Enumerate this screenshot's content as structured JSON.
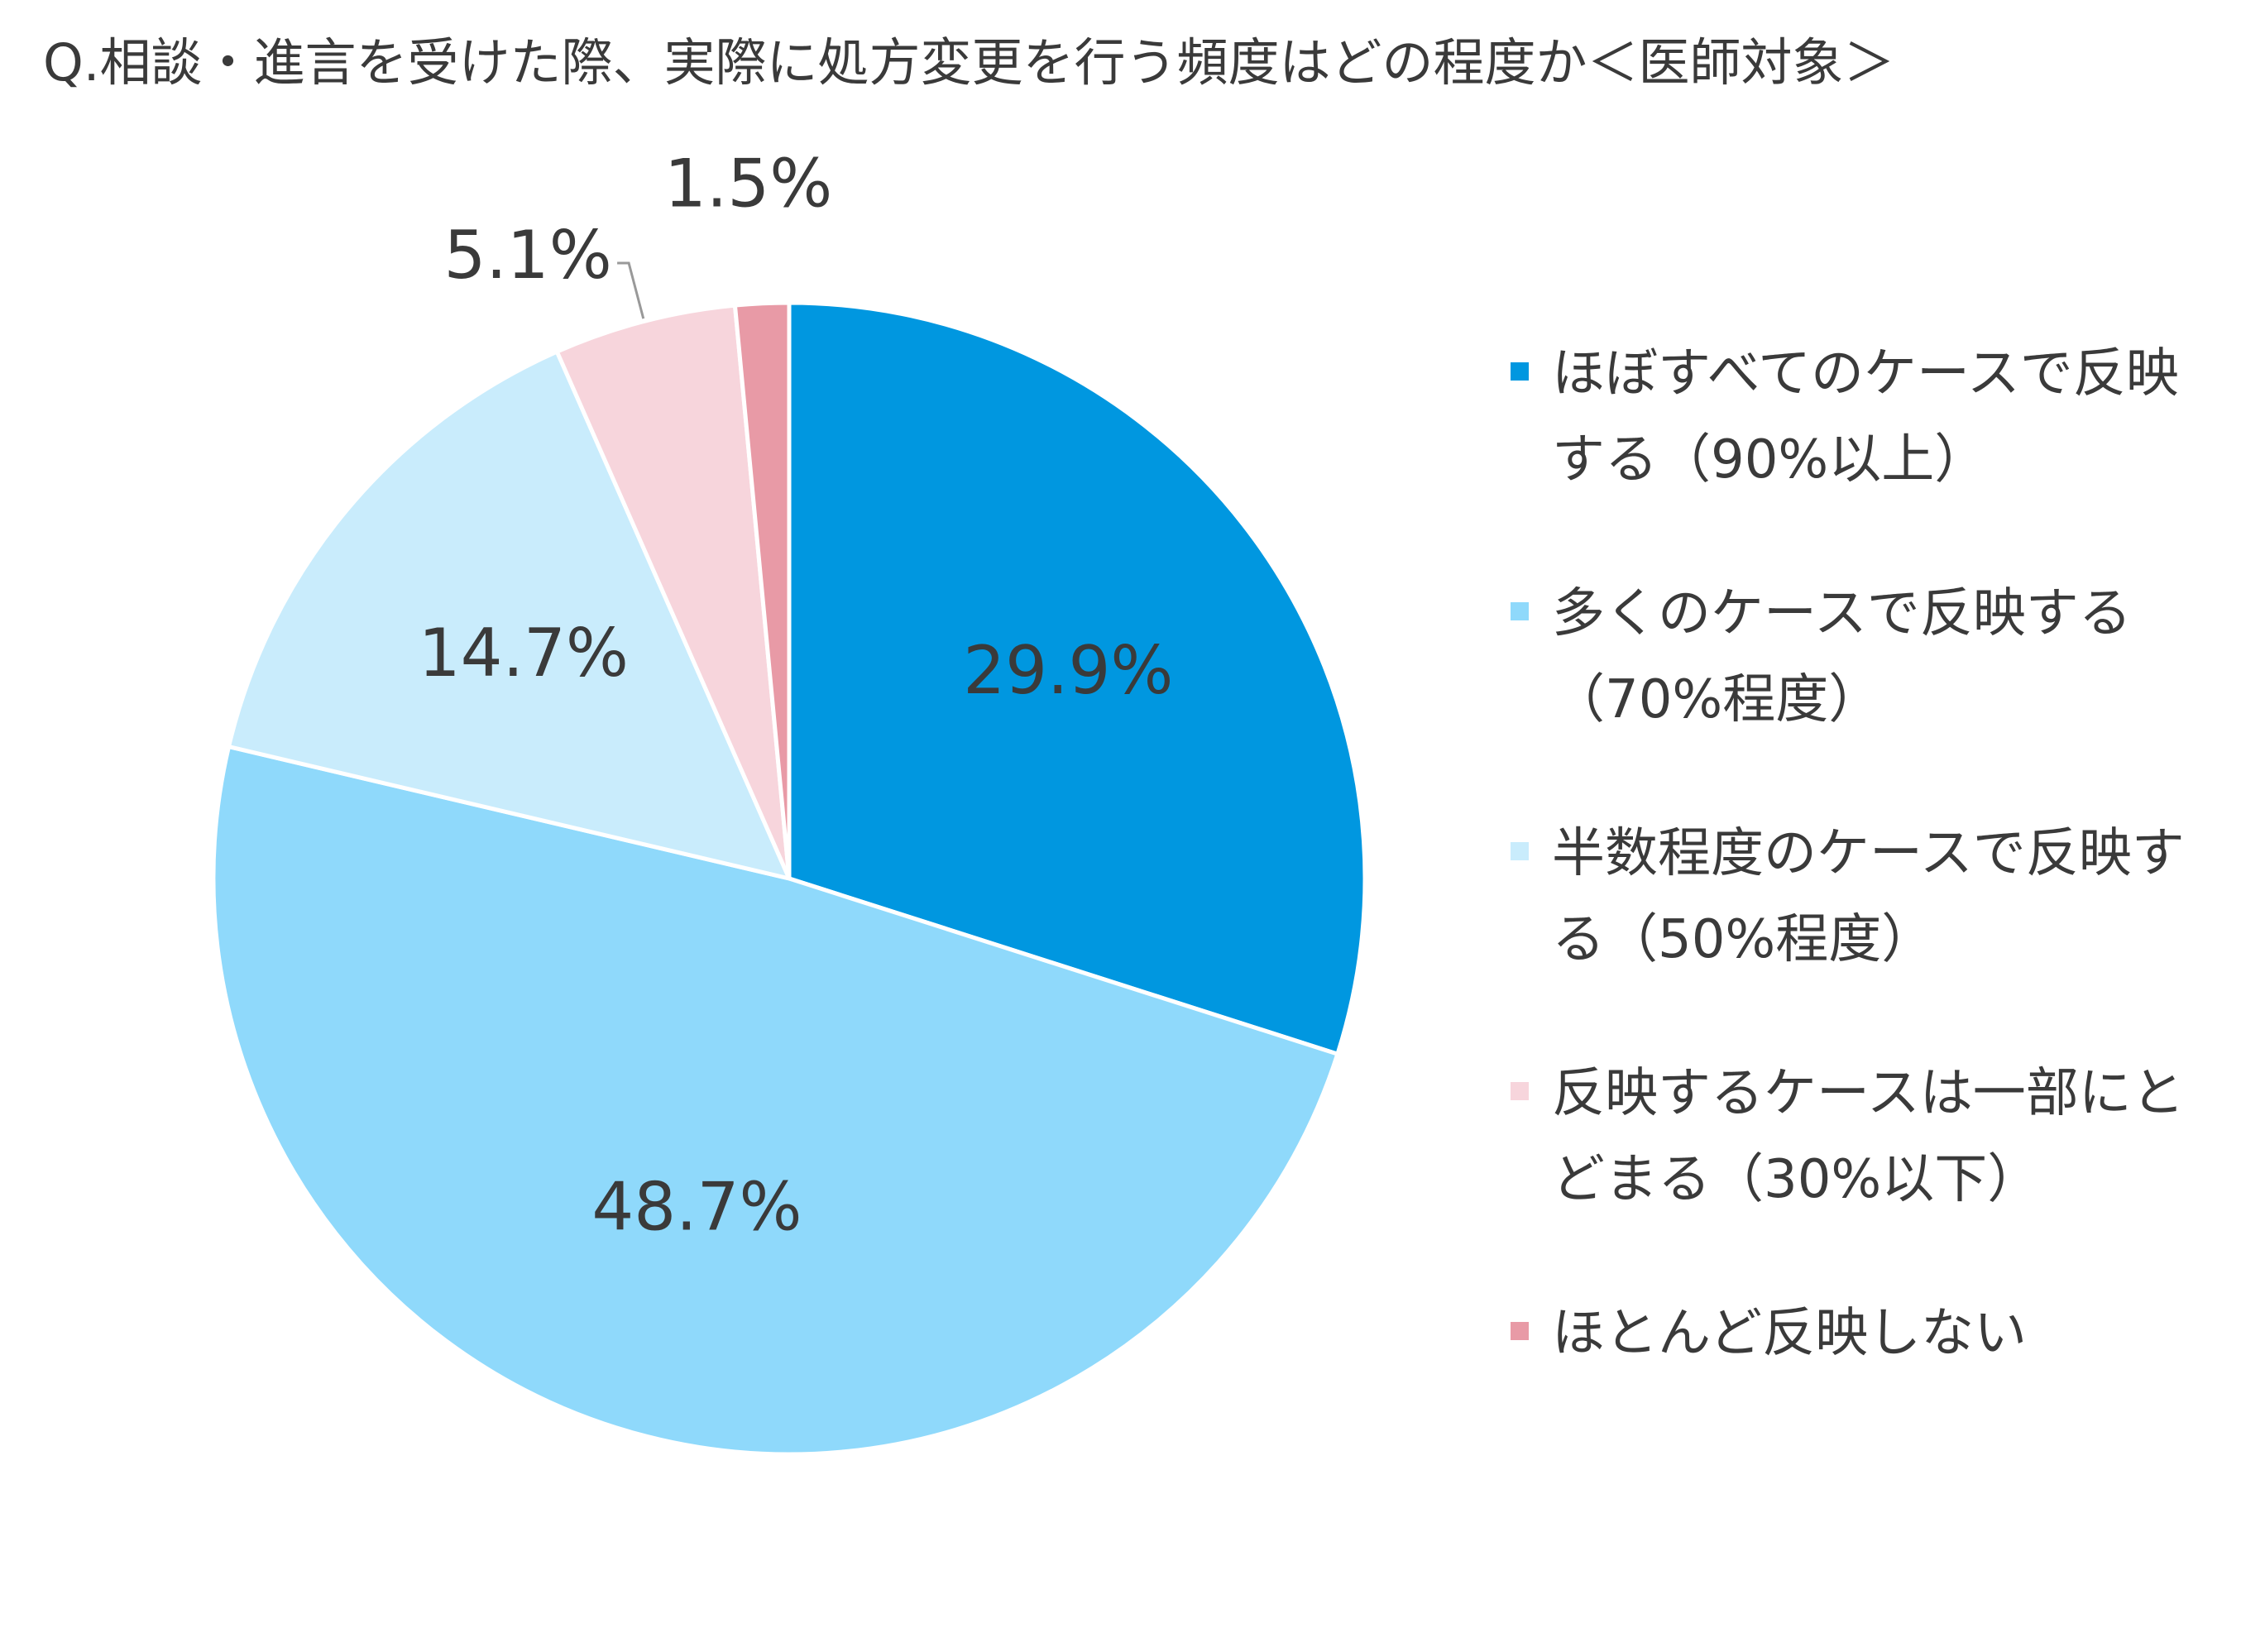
{
  "chart_data": {
    "type": "pie",
    "title": "Q.相談・進言を受けた際、実際に処方変更を行う頻度はどの程度か＜医師対象＞",
    "categories": [
      "ほぼすべてのケースで反映する（90%以上）",
      "多くのケースで反映する（70%程度）",
      "半数程度のケースで反映する（50%程度）",
      "反映するケースは一部にとどまる（30%以下）",
      "ほとんど反映しない"
    ],
    "values": [
      29.9,
      48.7,
      14.7,
      5.1,
      1.5
    ],
    "value_labels": [
      "29.9%",
      "48.7%",
      "14.7%",
      "5.1%",
      "1.5%"
    ],
    "colors": [
      "#0097e0",
      "#8fd9fb",
      "#c9ecfc",
      "#f7d5dc",
      "#e89aa6"
    ]
  }
}
